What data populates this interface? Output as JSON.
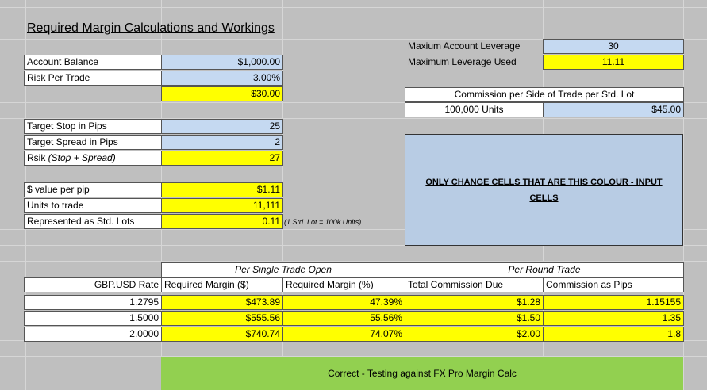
{
  "title": "Required Margin Calculations and Workings",
  "account": {
    "balance_label": "Account Balance",
    "balance_value": "$1,000.00",
    "risk_label": "Risk Per Trade",
    "risk_value": "3.00%",
    "risk_amount": "$30.00"
  },
  "stop": {
    "stop_label": "Target Stop in Pips",
    "stop_value": "25",
    "spread_label": "Target Spread in Pips",
    "spread_value": "2",
    "risk_label_main": "Rsik ",
    "risk_label_italic": "(Stop + Spread)",
    "risk_value": "27"
  },
  "pip": {
    "value_label": "$ value per pip",
    "value": "$1.11",
    "units_label": "Units to trade",
    "units_value": "11,111",
    "lots_label": "Represented as Std. Lots",
    "lots_value": "0.11",
    "lots_note": "(1 Std. Lot = 100k Units)"
  },
  "leverage": {
    "max_label": "Maxium Account Leverage",
    "max_value": "30",
    "used_label": "Maximum Leverage Used",
    "used_value": "11.11"
  },
  "commission": {
    "header": "Commission per Side of Trade per Std. Lot",
    "units_label": "100,000 Units",
    "value": "$45.00"
  },
  "info_box": "ONLY CHANGE CELLS THAT ARE THIS COLOUR - INPUT CELLS",
  "table": {
    "group_single": "Per Single Trade Open",
    "group_round": "Per Round Trade",
    "headers": [
      "GBP.USD Rate",
      "Required Margin ($)",
      "Required Margin (%)",
      "Total Commission Due",
      "Commission as Pips"
    ],
    "rows": [
      [
        "1.2795",
        "$473.89",
        "47.39%",
        "$1.28",
        "1.15155"
      ],
      [
        "1.5000",
        "$555.56",
        "55.56%",
        "$1.50",
        "1.35"
      ],
      [
        "2.0000",
        "$740.74",
        "74.07%",
        "$2.00",
        "1.8"
      ]
    ]
  },
  "status": "Correct - Testing against FX Pro Margin Calc"
}
